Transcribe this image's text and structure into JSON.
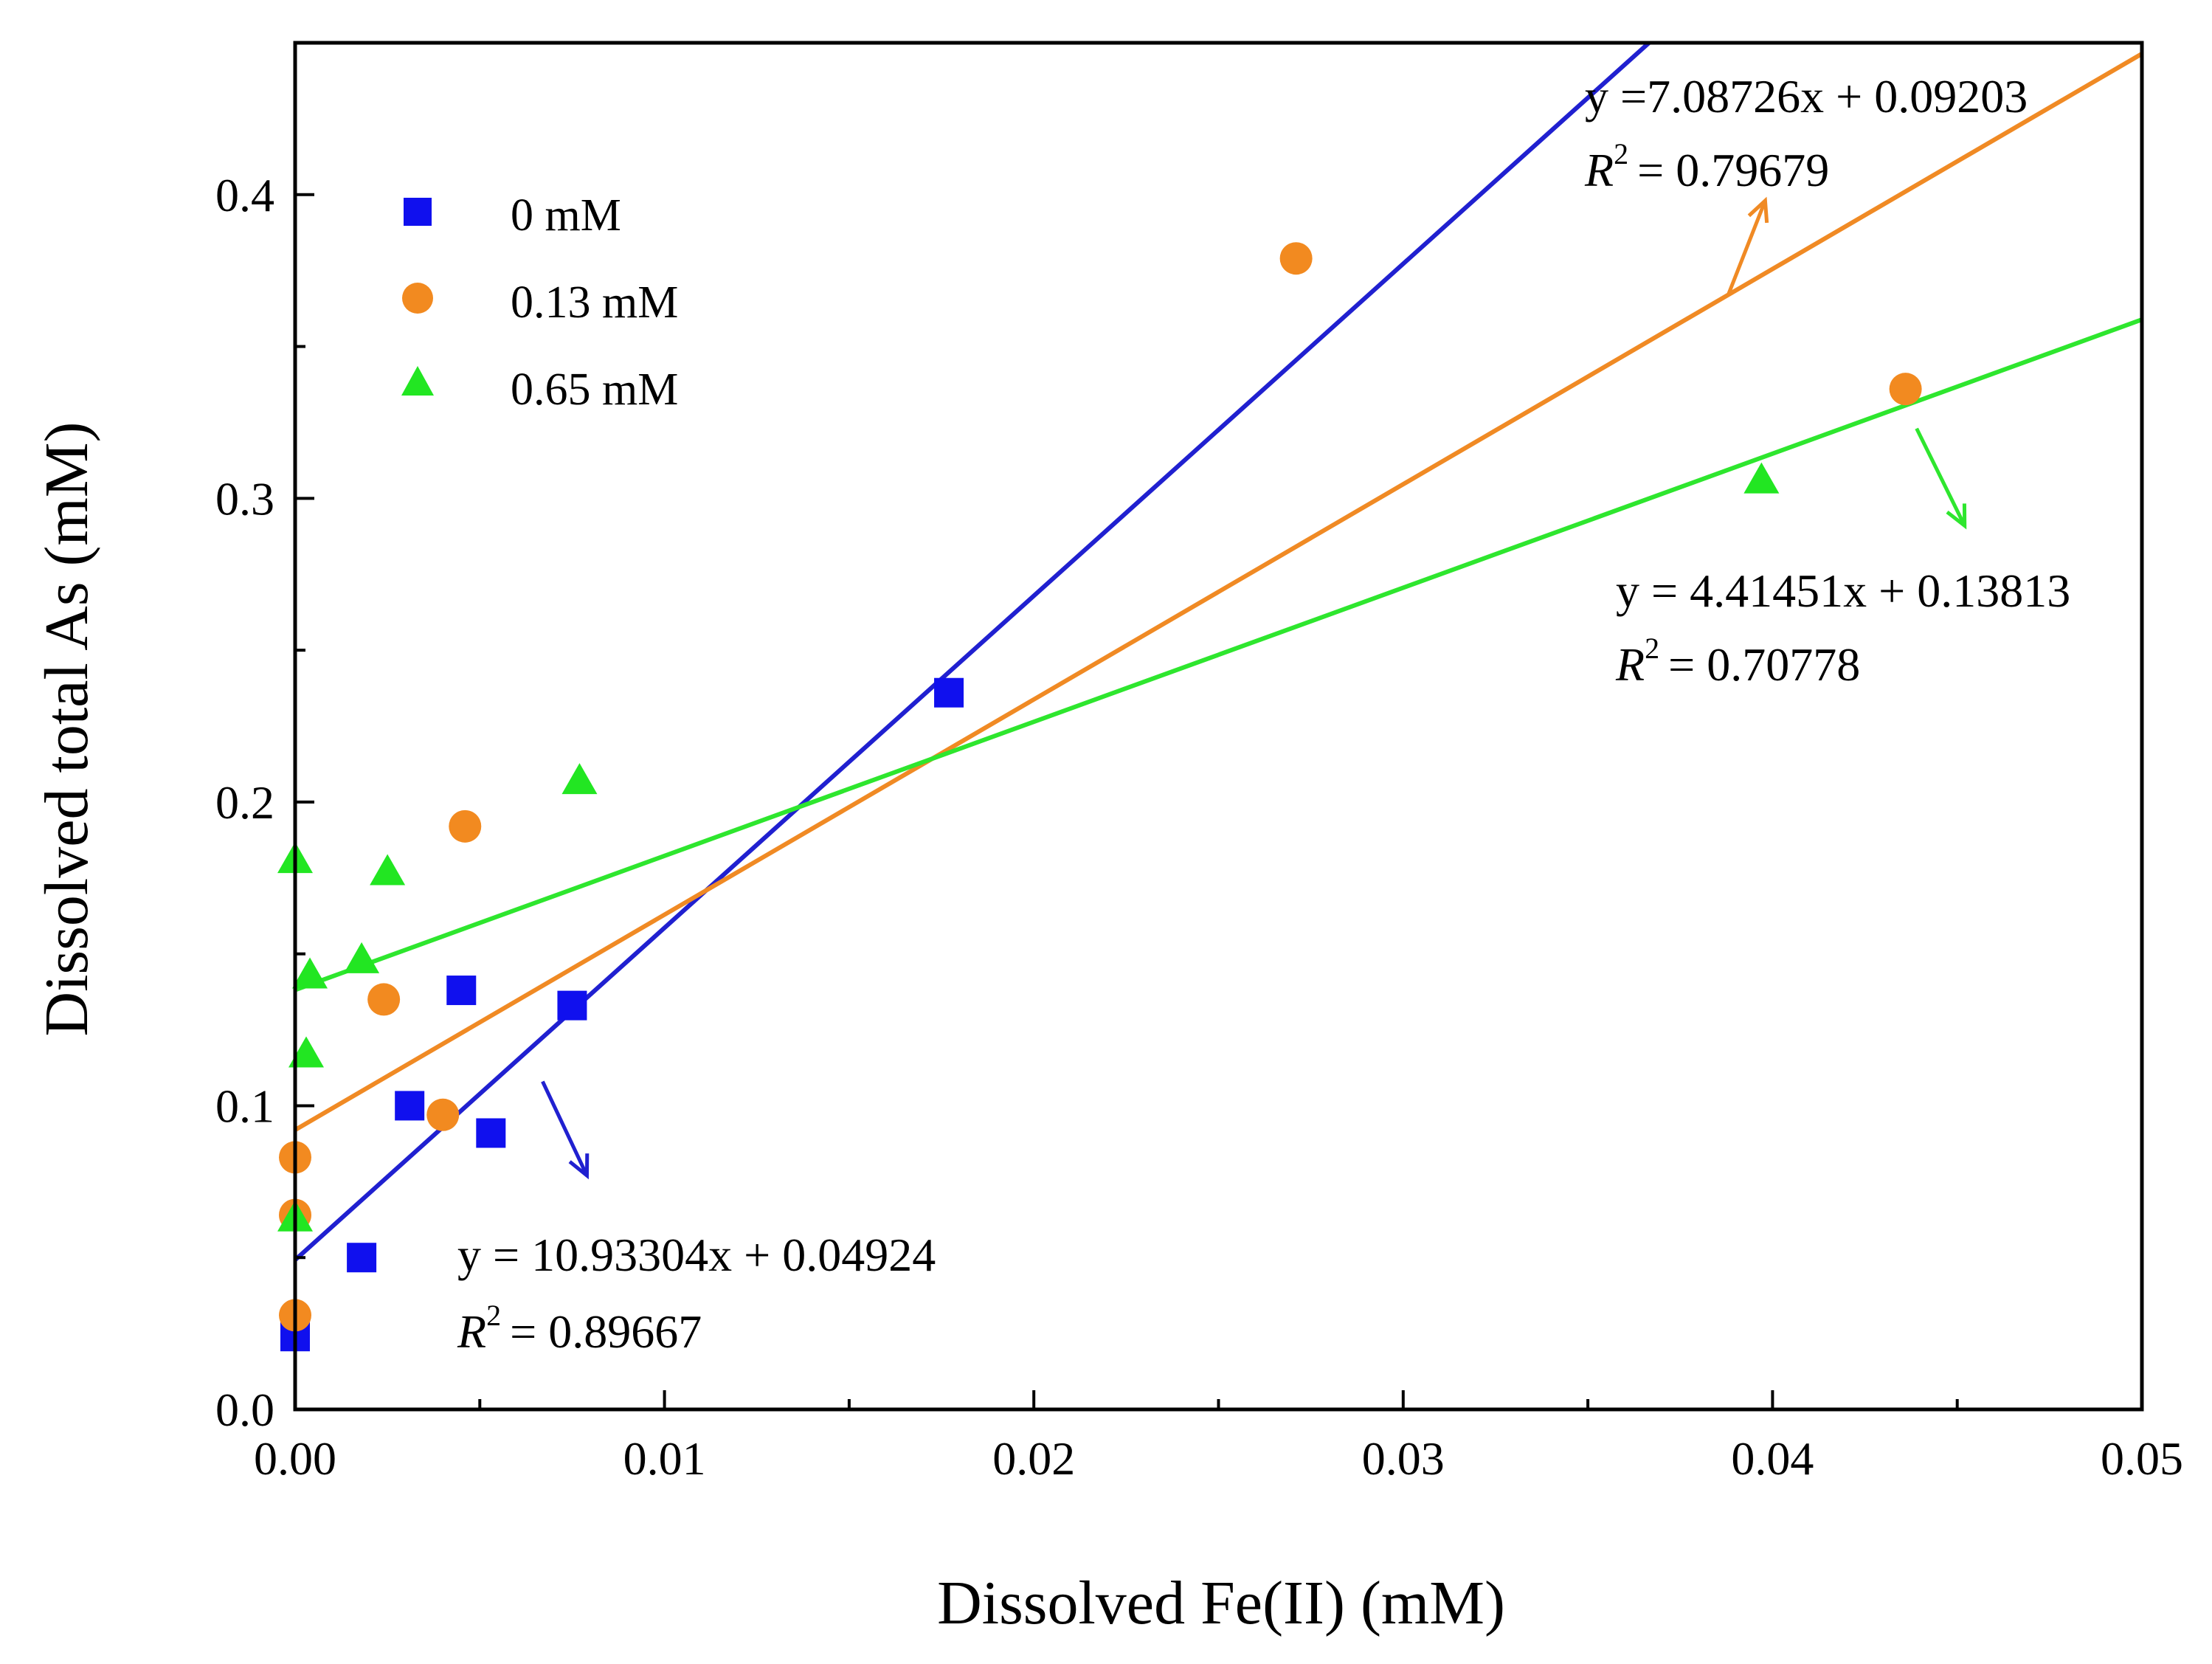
{
  "chart_data": {
    "type": "scatter",
    "xlabel": "Dissolved Fe(II) (mM)",
    "ylabel": "Dissolved total As (mM)",
    "xlim": [
      0,
      0.05
    ],
    "ylim": [
      0,
      0.45
    ],
    "x_ticks": [
      0.0,
      0.01,
      0.02,
      0.03,
      0.04,
      0.05
    ],
    "x_tick_labels": [
      "0.00",
      "0.01",
      "0.02",
      "0.03",
      "0.04",
      "0.05"
    ],
    "x_minor_ticks": [
      0.005,
      0.015,
      0.025,
      0.035,
      0.045
    ],
    "y_ticks": [
      0.0,
      0.1,
      0.2,
      0.3,
      0.4
    ],
    "y_tick_labels": [
      "0.0",
      "0.1",
      "0.2",
      "0.3",
      "0.4"
    ],
    "y_minor_ticks": [
      0.05,
      0.15,
      0.25,
      0.35
    ],
    "grid": false,
    "legend_position": "top-left",
    "series": [
      {
        "name": "0 mM",
        "marker": "square",
        "color": "#1010ee",
        "points": [
          [
            0.0,
            0.024
          ],
          [
            0.0018,
            0.05
          ],
          [
            0.0031,
            0.1
          ],
          [
            0.0045,
            0.138
          ],
          [
            0.0053,
            0.091
          ],
          [
            0.0075,
            0.133
          ],
          [
            0.0177,
            0.236
          ]
        ],
        "fit": {
          "slope": 10.93304,
          "intercept": 0.04924,
          "equation": "y = 10.93304x + 0.04924",
          "r2_value": "= 0.89667",
          "line_color": "#2020d0",
          "arrow_from": [
            0.0067,
            0.108
          ],
          "arrow_to": [
            0.0079,
            0.077
          ]
        }
      },
      {
        "name": "0.13 mM",
        "marker": "circle",
        "color": "#f28a20",
        "points": [
          [
            0.0,
            0.031
          ],
          [
            0.0,
            0.064
          ],
          [
            0.0,
            0.083
          ],
          [
            0.0024,
            0.135
          ],
          [
            0.004,
            0.097
          ],
          [
            0.0046,
            0.192
          ],
          [
            0.0271,
            0.379
          ],
          [
            0.0436,
            0.336
          ]
        ],
        "fit": {
          "slope": 7.08726,
          "intercept": 0.09203,
          "equation": "y =7.08726x + 0.09203",
          "r2_value": "= 0.79679",
          "line_color": "#f08a24",
          "arrow_from": [
            0.0388,
            0.367
          ],
          "arrow_to": [
            0.0398,
            0.398
          ]
        }
      },
      {
        "name": "0.65 mM",
        "marker": "triangle",
        "color": "#22e622",
        "points": [
          [
            0.0,
            0.063
          ],
          [
            0.0,
            0.181
          ],
          [
            0.0003,
            0.117
          ],
          [
            0.0004,
            0.143
          ],
          [
            0.0018,
            0.148
          ],
          [
            0.0025,
            0.177
          ],
          [
            0.0077,
            0.207
          ],
          [
            0.0397,
            0.306
          ]
        ],
        "fit": {
          "slope": 4.41451,
          "intercept": 0.13813,
          "equation": "y = 4.41451x + 0.13813",
          "r2_value": "= 0.70778",
          "line_color": "#2ee62e",
          "arrow_from": [
            0.0439,
            0.323
          ],
          "arrow_to": [
            0.0452,
            0.291
          ]
        }
      }
    ],
    "r2_symbol": "R",
    "r2_exponent": "2"
  }
}
